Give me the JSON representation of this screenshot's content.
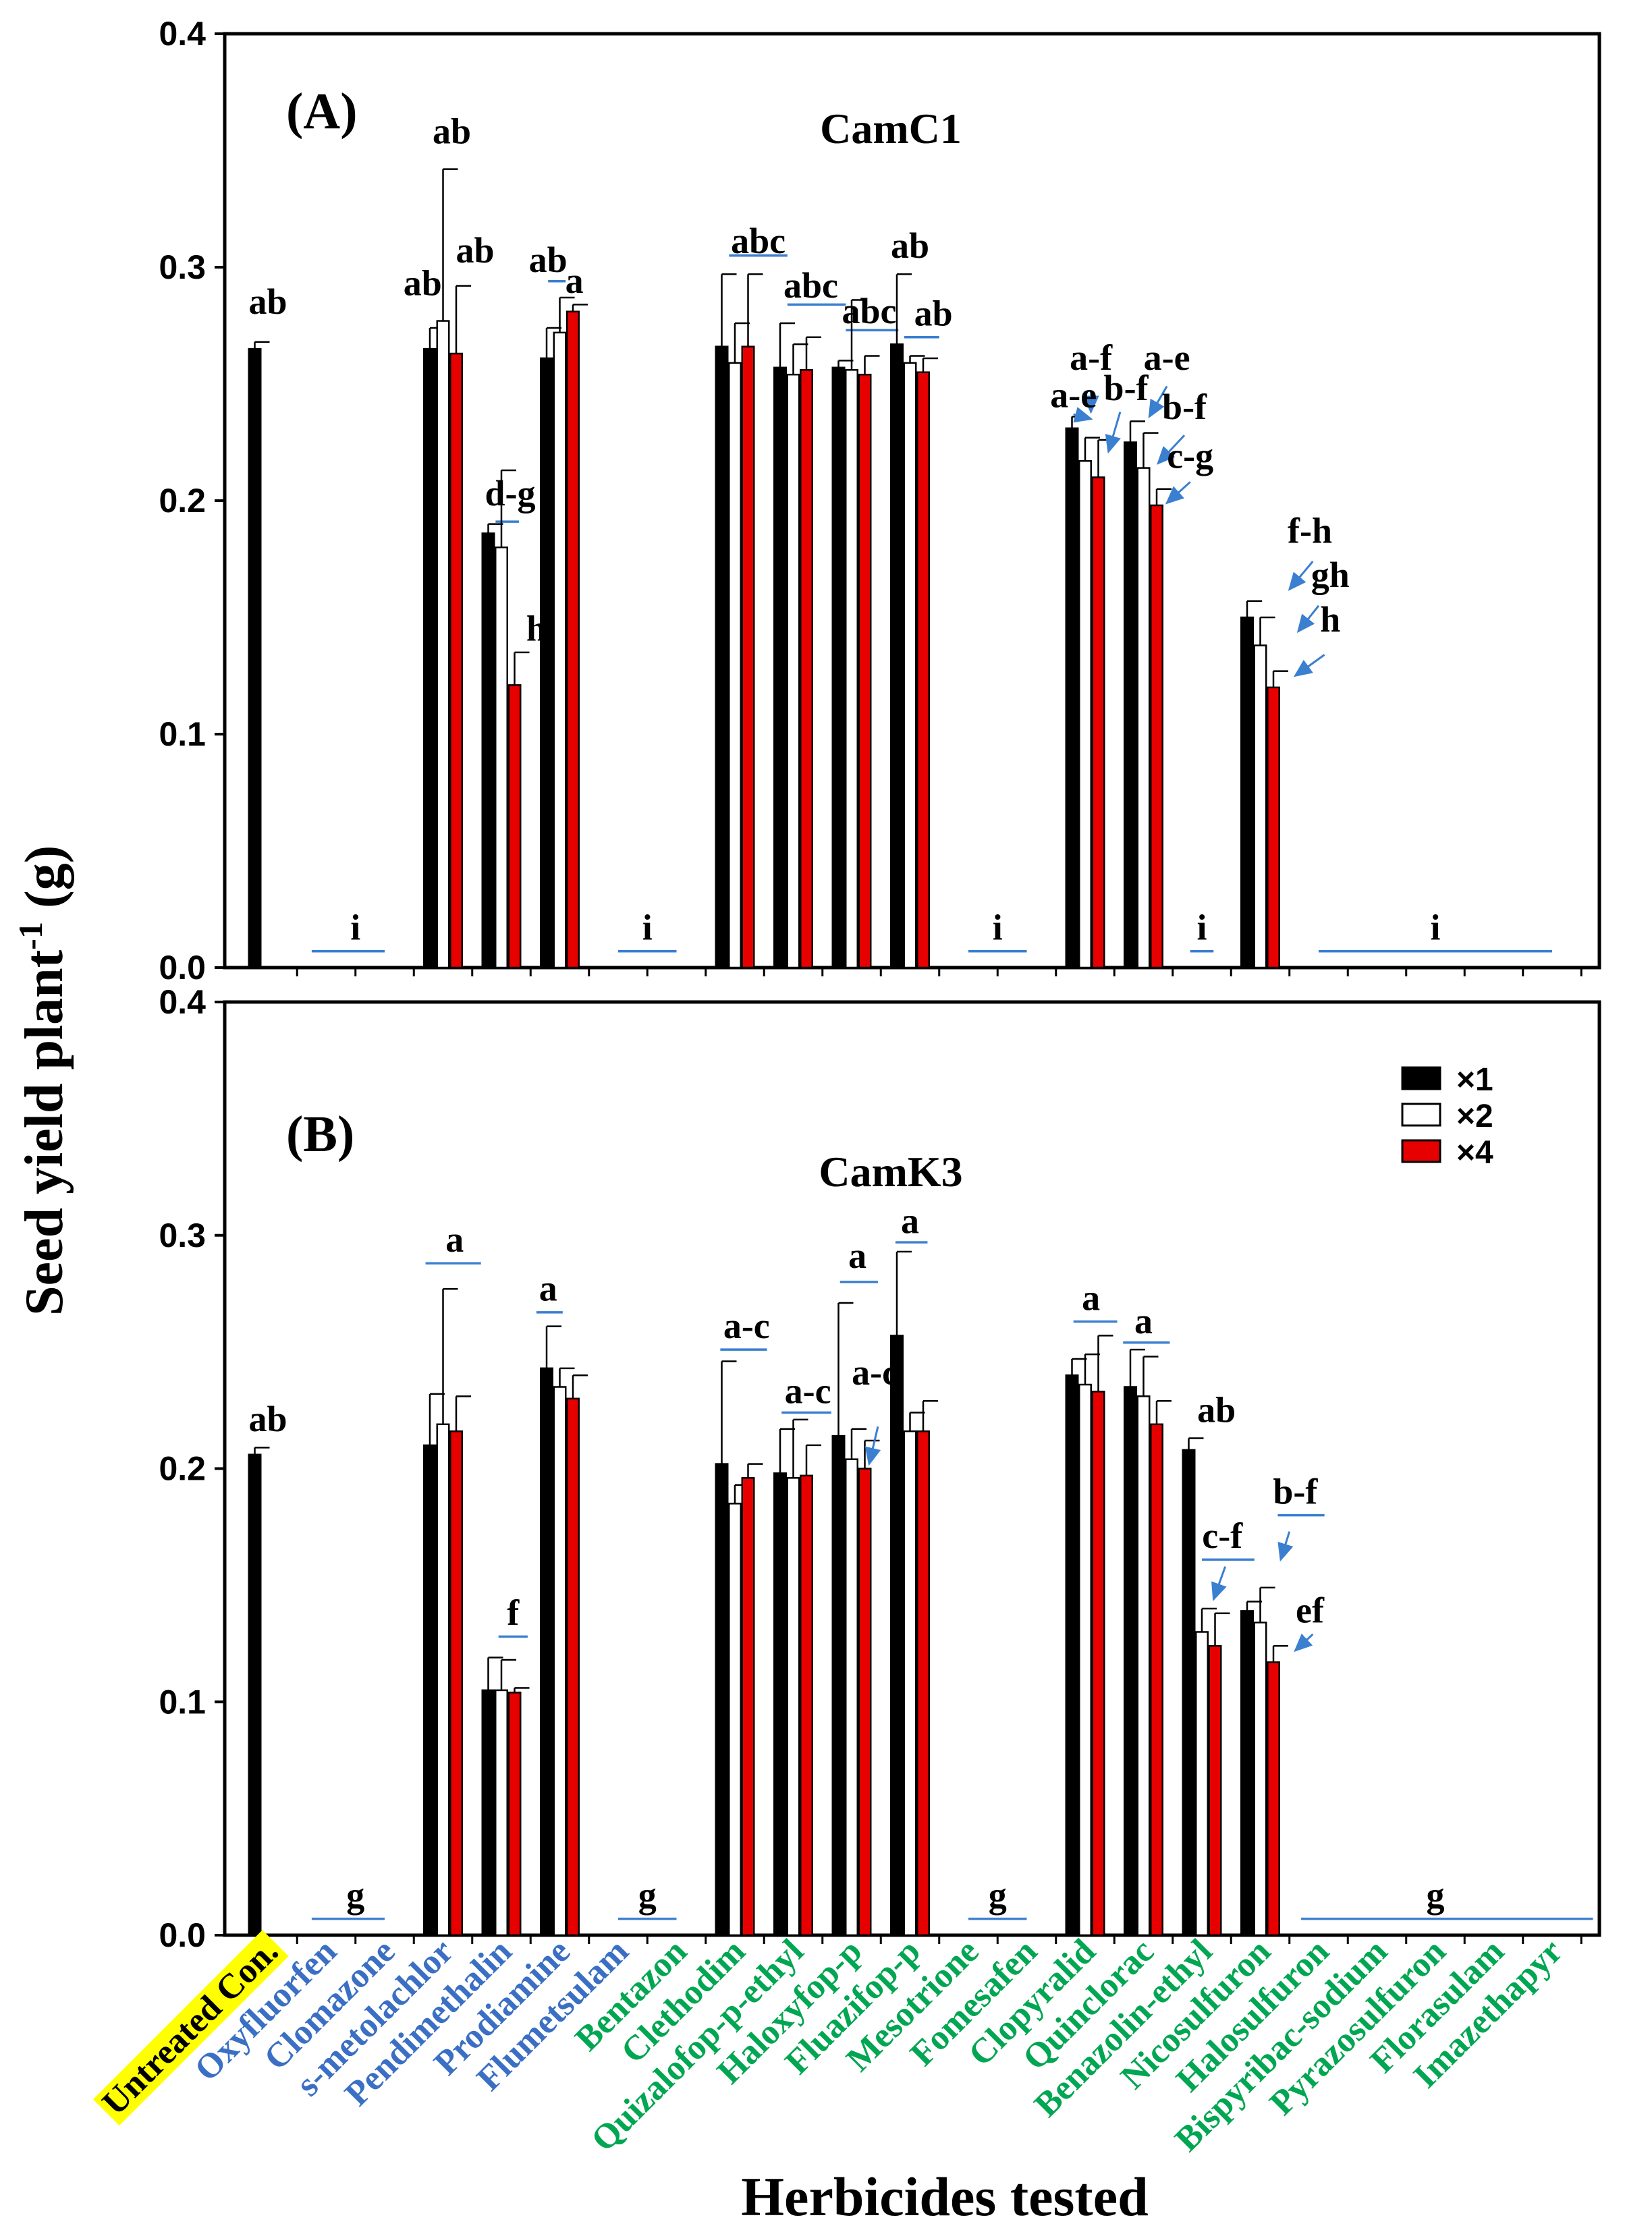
{
  "y_axis_label": "Seed yield plant",
  "y_axis_label_sup": "-1",
  "y_axis_label_unit": " (g)",
  "x_axis_label": "Herbicides tested",
  "colors": {
    "x1": "#000000",
    "x2": "#ffffff",
    "x4": "#e60000",
    "blue_label": "#3a6fc4",
    "green_label": "#00a651",
    "highlight": "#ffff00",
    "annotation_line": "#3a7fd0"
  },
  "legend": [
    {
      "key": "x1",
      "label": "×1"
    },
    {
      "key": "x2",
      "label": "×2"
    },
    {
      "key": "x4",
      "label": "×4"
    }
  ],
  "herbicides": [
    {
      "name": "Untreated Con.",
      "color": "black",
      "highlight": true
    },
    {
      "name": "Oxyfluorfen",
      "color": "blue"
    },
    {
      "name": "Clomazone",
      "color": "blue"
    },
    {
      "name": "s-metolachlor",
      "color": "blue"
    },
    {
      "name": "Pendimethalin",
      "color": "blue"
    },
    {
      "name": "Prodiamine",
      "color": "blue"
    },
    {
      "name": "Flumetsulam",
      "color": "blue"
    },
    {
      "name": "Bentazon",
      "color": "green"
    },
    {
      "name": "Clethodim",
      "color": "green"
    },
    {
      "name": "Quizalofop-p-ethyl",
      "color": "green"
    },
    {
      "name": "Haloxyfop-p",
      "color": "green"
    },
    {
      "name": "Fluazifop-p",
      "color": "green"
    },
    {
      "name": "Mesotrione",
      "color": "green"
    },
    {
      "name": "Fomesafen",
      "color": "green"
    },
    {
      "name": "Clopyralid",
      "color": "green"
    },
    {
      "name": "Quinclorac",
      "color": "green"
    },
    {
      "name": "Benazolin-ethyl",
      "color": "green"
    },
    {
      "name": "Nicosulfuron",
      "color": "green"
    },
    {
      "name": "Halosulfuron",
      "color": "green"
    },
    {
      "name": "Bispyribac-sodium",
      "color": "green"
    },
    {
      "name": "Pyrazosulfuron",
      "color": "green"
    },
    {
      "name": "Florasulam",
      "color": "green"
    },
    {
      "name": "Imazethapyr",
      "color": "green"
    }
  ],
  "chart_data": [
    {
      "type": "bar",
      "panel": "(A)",
      "title": "CamC1",
      "xlabel": "Herbicides tested",
      "ylabel": "Seed yield plant-1 (g)",
      "ylim": [
        0,
        0.4
      ],
      "yticks": [
        "0.0",
        "0.1",
        "0.2",
        "0.3",
        "0.4"
      ],
      "bars": [
        {
          "cat": 0,
          "dose": "x1",
          "value": 0.265,
          "err": 0.003
        },
        {
          "cat": 3,
          "dose": "x1",
          "value": 0.265,
          "err": 0.009
        },
        {
          "cat": 3,
          "dose": "x2",
          "value": 0.277,
          "err": 0.065
        },
        {
          "cat": 3,
          "dose": "x4",
          "value": 0.263,
          "err": 0.029
        },
        {
          "cat": 4,
          "dose": "x1",
          "value": 0.186,
          "err": 0.004
        },
        {
          "cat": 4,
          "dose": "x2",
          "value": 0.18,
          "err": 0.033
        },
        {
          "cat": 4,
          "dose": "x4",
          "value": 0.121,
          "err": 0.014
        },
        {
          "cat": 5,
          "dose": "x1",
          "value": 0.261,
          "err": 0.013
        },
        {
          "cat": 5,
          "dose": "x2",
          "value": 0.272,
          "err": 0.015
        },
        {
          "cat": 5,
          "dose": "x4",
          "value": 0.281,
          "err": 0.003
        },
        {
          "cat": 8,
          "dose": "x1",
          "value": 0.266,
          "err": 0.031
        },
        {
          "cat": 8,
          "dose": "x2",
          "value": 0.259,
          "err": 0.017
        },
        {
          "cat": 8,
          "dose": "x4",
          "value": 0.266,
          "err": 0.031
        },
        {
          "cat": 9,
          "dose": "x1",
          "value": 0.257,
          "err": 0.019
        },
        {
          "cat": 9,
          "dose": "x2",
          "value": 0.254,
          "err": 0.013
        },
        {
          "cat": 9,
          "dose": "x4",
          "value": 0.256,
          "err": 0.014
        },
        {
          "cat": 10,
          "dose": "x1",
          "value": 0.257,
          "err": 0.003
        },
        {
          "cat": 10,
          "dose": "x2",
          "value": 0.256,
          "err": 0.03
        },
        {
          "cat": 10,
          "dose": "x4",
          "value": 0.254,
          "err": 0.008
        },
        {
          "cat": 11,
          "dose": "x1",
          "value": 0.267,
          "err": 0.03
        },
        {
          "cat": 11,
          "dose": "x2",
          "value": 0.259,
          "err": 0.003
        },
        {
          "cat": 11,
          "dose": "x4",
          "value": 0.255,
          "err": 0.006
        },
        {
          "cat": 14,
          "dose": "x1",
          "value": 0.231,
          "err": 0.005
        },
        {
          "cat": 14,
          "dose": "x2",
          "value": 0.217,
          "err": 0.01
        },
        {
          "cat": 14,
          "dose": "x4",
          "value": 0.21,
          "err": 0.016
        },
        {
          "cat": 15,
          "dose": "x1",
          "value": 0.225,
          "err": 0.009
        },
        {
          "cat": 15,
          "dose": "x2",
          "value": 0.214,
          "err": 0.015
        },
        {
          "cat": 15,
          "dose": "x4",
          "value": 0.198,
          "err": 0.007
        },
        {
          "cat": 17,
          "dose": "x1",
          "value": 0.15,
          "err": 0.007
        },
        {
          "cat": 17,
          "dose": "x2",
          "value": 0.138,
          "err": 0.012
        },
        {
          "cat": 17,
          "dose": "x4",
          "value": 0.12,
          "err": 0.007
        }
      ],
      "annotations": [
        {
          "text": "ab",
          "cat": 0,
          "y": 0.28
        },
        {
          "text": "i",
          "cat": 1.5,
          "y": 0.012
        },
        {
          "text": "ab",
          "cat": 2.65,
          "y": 0.288
        },
        {
          "text": "ab",
          "cat": 3.15,
          "y": 0.353
        },
        {
          "text": "ab",
          "cat": 3.55,
          "y": 0.302
        },
        {
          "text": "d-g",
          "cat": 4.15,
          "y": 0.198
        },
        {
          "text": "h",
          "cat": 4.6,
          "y": 0.14
        },
        {
          "text": "ab",
          "cat": 4.8,
          "y": 0.298
        },
        {
          "text": "a",
          "cat": 5.25,
          "y": 0.289
        },
        {
          "text": "i",
          "cat": 6.5,
          "y": 0.012
        },
        {
          "text": "abc",
          "cat": 8.4,
          "y": 0.306
        },
        {
          "text": "abc",
          "cat": 9.3,
          "y": 0.287
        },
        {
          "text": "abc",
          "cat": 10.3,
          "y": 0.276
        },
        {
          "text": "ab",
          "cat": 11.0,
          "y": 0.304
        },
        {
          "text": "ab",
          "cat": 11.4,
          "y": 0.275
        },
        {
          "text": "i",
          "cat": 12.5,
          "y": 0.012
        },
        {
          "text": "a-e",
          "cat": 13.8,
          "y": 0.24
        },
        {
          "text": "a-f",
          "cat": 14.1,
          "y": 0.256
        },
        {
          "text": "b-f",
          "cat": 14.7,
          "y": 0.243
        },
        {
          "text": "a-e",
          "cat": 15.4,
          "y": 0.256
        },
        {
          "text": "b-f",
          "cat": 15.7,
          "y": 0.235
        },
        {
          "text": "c-g",
          "cat": 15.8,
          "y": 0.214
        },
        {
          "text": "i",
          "cat": 16.0,
          "y": 0.012
        },
        {
          "text": "f-h",
          "cat": 17.85,
          "y": 0.182
        },
        {
          "text": "gh",
          "cat": 18.2,
          "y": 0.163
        },
        {
          "text": "h",
          "cat": 18.2,
          "y": 0.144
        },
        {
          "text": "i",
          "cat": 20.0,
          "y": 0.012
        }
      ],
      "ranges": [
        {
          "from": 0.75,
          "to": 2.0,
          "y": 0.007
        },
        {
          "from": 6.0,
          "to": 7.0,
          "y": 0.007
        },
        {
          "from": 12.0,
          "to": 13.0,
          "y": 0.007
        },
        {
          "from": 15.8,
          "to": 16.2,
          "y": 0.007
        },
        {
          "from": 18.0,
          "to": 22.0,
          "y": 0.007
        },
        {
          "from": 3.9,
          "to": 4.3,
          "y": 0.191
        },
        {
          "from": 4.8,
          "to": 5.1,
          "y": 0.294
        },
        {
          "from": 7.9,
          "to": 8.9,
          "y": 0.305
        },
        {
          "from": 8.9,
          "to": 9.9,
          "y": 0.284
        },
        {
          "from": 9.9,
          "to": 10.8,
          "y": 0.273
        },
        {
          "from": 10.9,
          "to": 11.5,
          "y": 0.27
        }
      ],
      "arrows": [
        {
          "from": [
            13.8,
            0.237
          ],
          "to": [
            14.1,
            0.235
          ]
        },
        {
          "from": [
            14.1,
            0.247
          ],
          "to": [
            14.1,
            0.238
          ]
        },
        {
          "from": [
            14.6,
            0.238
          ],
          "to": [
            14.4,
            0.221
          ]
        },
        {
          "from": [
            15.4,
            0.249
          ],
          "to": [
            15.1,
            0.236
          ]
        },
        {
          "from": [
            15.7,
            0.228
          ],
          "to": [
            15.25,
            0.216
          ]
        },
        {
          "from": [
            15.8,
            0.208
          ],
          "to": [
            15.4,
            0.199
          ]
        },
        {
          "from": [
            17.9,
            0.174
          ],
          "to": [
            17.5,
            0.162
          ]
        },
        {
          "from": [
            18.0,
            0.155
          ],
          "to": [
            17.65,
            0.144
          ]
        },
        {
          "from": [
            18.1,
            0.134
          ],
          "to": [
            17.6,
            0.125
          ]
        }
      ]
    },
    {
      "type": "bar",
      "panel": "(B)",
      "title": "CamK3",
      "xlabel": "Herbicides tested",
      "ylabel": "Seed yield plant-1 (g)",
      "ylim": [
        0,
        0.4
      ],
      "yticks": [
        "0.0",
        "0.1",
        "0.2",
        "0.3",
        "0.4"
      ],
      "legend_position": "top-right",
      "bars": [
        {
          "cat": 0,
          "dose": "x1",
          "value": 0.206,
          "err": 0.003
        },
        {
          "cat": 3,
          "dose": "x1",
          "value": 0.21,
          "err": 0.022
        },
        {
          "cat": 3,
          "dose": "x2",
          "value": 0.219,
          "err": 0.058
        },
        {
          "cat": 3,
          "dose": "x4",
          "value": 0.216,
          "err": 0.015
        },
        {
          "cat": 4,
          "dose": "x1",
          "value": 0.105,
          "err": 0.014
        },
        {
          "cat": 4,
          "dose": "x2",
          "value": 0.105,
          "err": 0.013
        },
        {
          "cat": 4,
          "dose": "x4",
          "value": 0.104,
          "err": 0.002
        },
        {
          "cat": 5,
          "dose": "x1",
          "value": 0.243,
          "err": 0.018
        },
        {
          "cat": 5,
          "dose": "x2",
          "value": 0.235,
          "err": 0.008
        },
        {
          "cat": 5,
          "dose": "x4",
          "value": 0.23,
          "err": 0.01
        },
        {
          "cat": 8,
          "dose": "x1",
          "value": 0.202,
          "err": 0.044
        },
        {
          "cat": 8,
          "dose": "x2",
          "value": 0.185,
          "err": 0.008
        },
        {
          "cat": 8,
          "dose": "x4",
          "value": 0.196,
          "err": 0.006
        },
        {
          "cat": 9,
          "dose": "x1",
          "value": 0.198,
          "err": 0.019
        },
        {
          "cat": 9,
          "dose": "x2",
          "value": 0.196,
          "err": 0.025
        },
        {
          "cat": 9,
          "dose": "x4",
          "value": 0.197,
          "err": 0.013
        },
        {
          "cat": 10,
          "dose": "x1",
          "value": 0.214,
          "err": 0.057
        },
        {
          "cat": 10,
          "dose": "x2",
          "value": 0.204,
          "err": 0.013
        },
        {
          "cat": 10,
          "dose": "x4",
          "value": 0.2,
          "err": 0.012
        },
        {
          "cat": 11,
          "dose": "x1",
          "value": 0.257,
          "err": 0.036
        },
        {
          "cat": 11,
          "dose": "x2",
          "value": 0.216,
          "err": 0.008
        },
        {
          "cat": 11,
          "dose": "x4",
          "value": 0.216,
          "err": 0.013
        },
        {
          "cat": 14,
          "dose": "x1",
          "value": 0.24,
          "err": 0.007
        },
        {
          "cat": 14,
          "dose": "x2",
          "value": 0.236,
          "err": 0.013
        },
        {
          "cat": 14,
          "dose": "x4",
          "value": 0.233,
          "err": 0.024
        },
        {
          "cat": 15,
          "dose": "x1",
          "value": 0.235,
          "err": 0.016
        },
        {
          "cat": 15,
          "dose": "x2",
          "value": 0.231,
          "err": 0.017
        },
        {
          "cat": 15,
          "dose": "x4",
          "value": 0.219,
          "err": 0.01
        },
        {
          "cat": 16,
          "dose": "x1",
          "value": 0.208,
          "err": 0.005
        },
        {
          "cat": 16,
          "dose": "x2",
          "value": 0.13,
          "err": 0.01
        },
        {
          "cat": 16,
          "dose": "x4",
          "value": 0.124,
          "err": 0.014
        },
        {
          "cat": 17,
          "dose": "x1",
          "value": 0.139,
          "err": 0.004
        },
        {
          "cat": 17,
          "dose": "x2",
          "value": 0.134,
          "err": 0.015
        },
        {
          "cat": 17,
          "dose": "x4",
          "value": 0.117,
          "err": 0.007
        }
      ],
      "annotations": [
        {
          "text": "ab",
          "cat": 0,
          "y": 0.216
        },
        {
          "text": "g",
          "cat": 1.5,
          "y": 0.012
        },
        {
          "text": "a",
          "cat": 3.2,
          "y": 0.293
        },
        {
          "text": "f",
          "cat": 4.2,
          "y": 0.133
        },
        {
          "text": "a",
          "cat": 4.8,
          "y": 0.272
        },
        {
          "text": "g",
          "cat": 6.5,
          "y": 0.012
        },
        {
          "text": "a-c",
          "cat": 8.2,
          "y": 0.256
        },
        {
          "text": "a-c",
          "cat": 9.25,
          "y": 0.228
        },
        {
          "text": "a",
          "cat": 10.1,
          "y": 0.286
        },
        {
          "text": "a-c",
          "cat": 10.4,
          "y": 0.236
        },
        {
          "text": "a",
          "cat": 11.0,
          "y": 0.301
        },
        {
          "text": "g",
          "cat": 12.5,
          "y": 0.012
        },
        {
          "text": "a",
          "cat": 14.1,
          "y": 0.268
        },
        {
          "text": "a",
          "cat": 15.0,
          "y": 0.258
        },
        {
          "text": "ab",
          "cat": 16.25,
          "y": 0.22
        },
        {
          "text": "c-f",
          "cat": 16.35,
          "y": 0.166
        },
        {
          "text": "b-f",
          "cat": 17.6,
          "y": 0.185
        },
        {
          "text": "ef",
          "cat": 17.85,
          "y": 0.134
        },
        {
          "text": "g",
          "cat": 20.0,
          "y": 0.012
        }
      ],
      "ranges": [
        {
          "from": 0.75,
          "to": 2.0,
          "y": 0.007
        },
        {
          "from": 6.0,
          "to": 7.0,
          "y": 0.007
        },
        {
          "from": 12.0,
          "to": 13.0,
          "y": 0.007
        },
        {
          "from": 17.7,
          "to": 22.7,
          "y": 0.007
        },
        {
          "from": 2.7,
          "to": 3.65,
          "y": 0.288
        },
        {
          "from": 3.95,
          "to": 4.45,
          "y": 0.128
        },
        {
          "from": 4.6,
          "to": 5.05,
          "y": 0.267
        },
        {
          "from": 7.75,
          "to": 8.55,
          "y": 0.251
        },
        {
          "from": 8.8,
          "to": 9.65,
          "y": 0.224
        },
        {
          "from": 9.8,
          "to": 10.45,
          "y": 0.28
        },
        {
          "from": 10.75,
          "to": 11.3,
          "y": 0.297
        },
        {
          "from": 13.8,
          "to": 14.55,
          "y": 0.263
        },
        {
          "from": 14.65,
          "to": 15.45,
          "y": 0.254
        },
        {
          "from": 16.0,
          "to": 16.9,
          "y": 0.161
        },
        {
          "from": 17.3,
          "to": 18.1,
          "y": 0.18
        }
      ],
      "arrows": [
        {
          "from": [
            10.45,
            0.218
          ],
          "to": [
            10.3,
            0.202
          ]
        },
        {
          "from": [
            16.4,
            0.158
          ],
          "to": [
            16.2,
            0.144
          ]
        },
        {
          "from": [
            17.5,
            0.173
          ],
          "to": [
            17.35,
            0.161
          ]
        },
        {
          "from": [
            17.9,
            0.129
          ],
          "to": [
            17.6,
            0.122
          ]
        }
      ]
    }
  ]
}
